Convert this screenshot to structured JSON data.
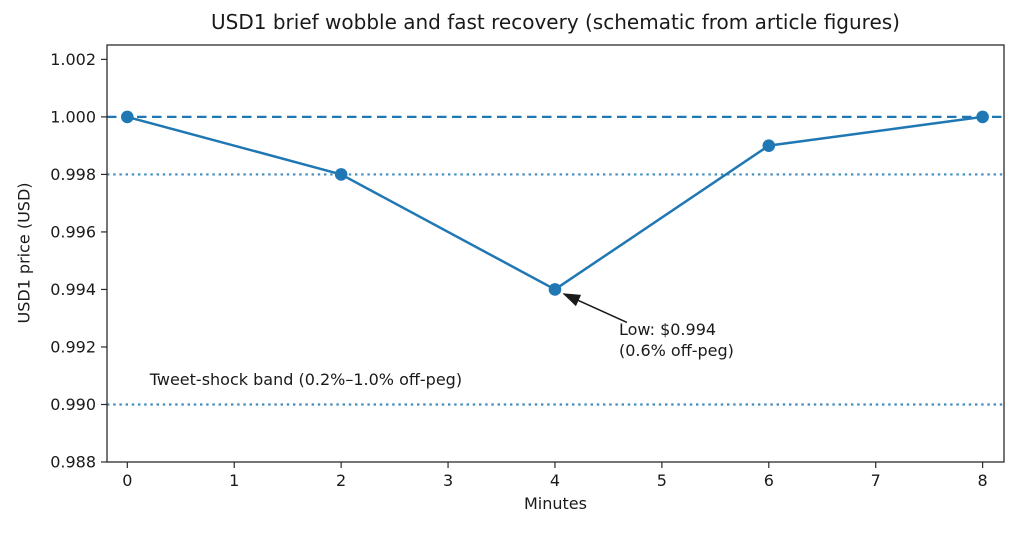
{
  "chart_data": {
    "type": "line",
    "title": "USD1 brief wobble and fast recovery (schematic from article figures)",
    "xlabel": "Minutes",
    "ylabel": "USD1 price (USD)",
    "x": [
      0,
      2,
      4,
      6,
      8
    ],
    "values": [
      1.0,
      0.998,
      0.994,
      0.999,
      1.0
    ],
    "series_name": "USD1 price",
    "xlim": [
      -0.19,
      8.2
    ],
    "ylim": [
      0.988,
      1.0025
    ],
    "xticks": [
      0,
      1,
      2,
      3,
      4,
      5,
      6,
      7,
      8
    ],
    "xtick_labels": [
      "0",
      "1",
      "2",
      "3",
      "4",
      "5",
      "6",
      "7",
      "8"
    ],
    "yticks": [
      0.988,
      0.99,
      0.992,
      0.994,
      0.996,
      0.998,
      1.0,
      1.002
    ],
    "ytick_labels": [
      "0.988",
      "0.990",
      "0.992",
      "0.994",
      "0.996",
      "0.998",
      "1.000",
      "1.002"
    ],
    "grid": false,
    "legend": false,
    "reference_lines": [
      {
        "y": 1.0,
        "style": "dashed"
      },
      {
        "y": 0.998,
        "style": "dotted"
      },
      {
        "y": 0.99,
        "style": "dotted"
      }
    ],
    "annotation": {
      "target_x": 4,
      "target_y": 0.994,
      "lines": [
        "Low: $0.994",
        "(0.6% off-peg)"
      ]
    },
    "band_label": "Tweet-shock band (0.2%–1.0% off-peg)",
    "colors": {
      "line": "#1f77b4",
      "reference": "#1f77b4",
      "text": "#1a1a1a",
      "spine": "#2b2b2b",
      "arrow": "#1a1a1a"
    }
  }
}
